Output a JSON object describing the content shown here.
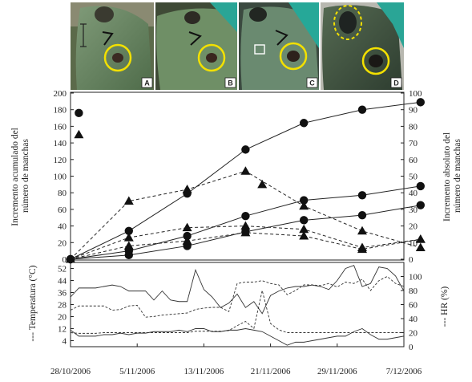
{
  "photo_panels": [
    {
      "label": "A"
    },
    {
      "label": "B"
    },
    {
      "label": "C"
    },
    {
      "label": "D"
    }
  ],
  "chart_data": [
    {
      "type": "line",
      "xlabel": "",
      "ylabel": "Incremento acumulado del número de manchas",
      "y2label": "Incremento absoluto del número de manchas",
      "ylim": [
        0,
        200
      ],
      "y2lim": [
        0,
        100
      ],
      "yticks": [
        0,
        20,
        40,
        60,
        80,
        100,
        120,
        140,
        160,
        180,
        200
      ],
      "y2ticks": [
        0,
        10,
        20,
        30,
        40,
        50,
        60,
        70,
        80,
        90,
        100
      ],
      "grid": false,
      "series": [
        {
          "style": "solid",
          "marker": "circle",
          "axis": "left",
          "points": [
            [
              "2006-10-28",
              0
            ],
            [
              "2006-11-04",
              34
            ],
            [
              "2006-11-11",
              79
            ],
            [
              "2006-11-18",
              132
            ],
            [
              "2006-11-25",
              164
            ],
            [
              "2006-12-02",
              180
            ],
            [
              "2006-12-09",
              189
            ]
          ]
        },
        {
          "style": "solid",
          "marker": "circle",
          "axis": "left",
          "points": [
            [
              "2006-10-28",
              0
            ],
            [
              "2006-11-04",
              10
            ],
            [
              "2006-11-11",
              28
            ],
            [
              "2006-11-18",
              52
            ],
            [
              "2006-11-25",
              71
            ],
            [
              "2006-12-02",
              77
            ],
            [
              "2006-12-09",
              88
            ]
          ]
        },
        {
          "style": "solid",
          "marker": "circle",
          "axis": "left",
          "points": [
            [
              "2006-10-28",
              0
            ],
            [
              "2006-11-04",
              5
            ],
            [
              "2006-11-11",
              16
            ],
            [
              "2006-11-18",
              33
            ],
            [
              "2006-11-25",
              47
            ],
            [
              "2006-12-02",
              53
            ],
            [
              "2006-12-09",
              65
            ]
          ]
        },
        {
          "style": "none",
          "marker": "circle",
          "axis": "left",
          "points": [
            [
              "2006-10-29",
              176
            ]
          ]
        },
        {
          "style": "dashed",
          "marker": "triangle",
          "axis": "right",
          "points": [
            [
              "2006-10-28",
              0
            ],
            [
              "2006-11-04",
              35
            ],
            [
              "2006-11-11",
              42
            ],
            [
              "2006-11-18",
              53
            ],
            [
              "2006-11-25",
              32
            ],
            [
              "2006-12-02",
              17
            ],
            [
              "2006-12-09",
              7
            ]
          ]
        },
        {
          "style": "dashed",
          "marker": "triangle",
          "axis": "right",
          "points": [
            [
              "2006-10-28",
              0
            ],
            [
              "2006-11-04",
              13
            ],
            [
              "2006-11-11",
              19
            ],
            [
              "2006-11-18",
              20
            ],
            [
              "2006-11-25",
              18
            ],
            [
              "2006-12-02",
              7
            ],
            [
              "2006-12-09",
              12
            ]
          ]
        },
        {
          "style": "dashed",
          "marker": "triangle",
          "axis": "right",
          "points": [
            [
              "2006-10-28",
              0
            ],
            [
              "2006-11-04",
              8
            ],
            [
              "2006-11-11",
              11
            ],
            [
              "2006-11-18",
              16
            ],
            [
              "2006-11-25",
              14
            ],
            [
              "2006-12-02",
              6
            ],
            [
              "2006-12-09",
              12
            ]
          ]
        },
        {
          "style": "none",
          "marker": "triangle",
          "axis": "right",
          "points": [
            [
              "2006-10-29",
              75
            ],
            [
              "2006-11-20",
              45
            ]
          ]
        }
      ]
    },
    {
      "type": "line",
      "xlabel": "",
      "ylabel": "--- Temperatura (°C)",
      "y2label": "--- HR (%)",
      "ylim": [
        0,
        56
      ],
      "y2lim": [
        0,
        120
      ],
      "yticks": [
        4,
        12,
        20,
        28,
        36,
        44,
        52
      ],
      "y2ticks": [
        0,
        20,
        40,
        60,
        80,
        100
      ],
      "x_ticks": [
        "28/10/2006",
        "5/11/2006",
        "13/11/2006",
        "21/11/2006",
        "29/11/2006",
        "7/12/2006"
      ],
      "grid": false,
      "series": [
        {
          "style": "solid",
          "axis": "left",
          "points": [
            [
              "2006-10-28",
              33
            ],
            [
              "2006-10-29",
              39
            ],
            [
              "2006-10-30",
              39
            ],
            [
              "2006-10-31",
              39
            ],
            [
              "2006-11-01",
              40
            ],
            [
              "2006-11-02",
              41
            ],
            [
              "2006-11-03",
              40
            ],
            [
              "2006-11-04",
              37
            ],
            [
              "2006-11-05",
              37
            ],
            [
              "2006-11-06",
              37
            ],
            [
              "2006-11-07",
              31
            ],
            [
              "2006-11-08",
              37
            ],
            [
              "2006-11-09",
              31
            ],
            [
              "2006-11-10",
              30
            ],
            [
              "2006-11-11",
              30
            ],
            [
              "2006-11-12",
              51
            ],
            [
              "2006-11-13",
              38
            ],
            [
              "2006-11-14",
              33
            ],
            [
              "2006-11-15",
              26
            ],
            [
              "2006-11-16",
              29
            ],
            [
              "2006-11-17",
              35
            ],
            [
              "2006-11-18",
              26
            ],
            [
              "2006-11-19",
              30
            ],
            [
              "2006-11-20",
              22
            ],
            [
              "2006-11-21",
              34
            ],
            [
              "2006-11-22",
              37
            ],
            [
              "2006-11-23",
              39
            ],
            [
              "2006-11-24",
              40
            ],
            [
              "2006-11-25",
              40
            ],
            [
              "2006-11-26",
              41
            ],
            [
              "2006-11-27",
              40
            ],
            [
              "2006-11-28",
              38
            ],
            [
              "2006-11-29",
              44
            ],
            [
              "2006-11-30",
              52
            ],
            [
              "2006-12-01",
              54
            ],
            [
              "2006-12-02",
              40
            ],
            [
              "2006-12-03",
              42
            ],
            [
              "2006-12-04",
              53
            ],
            [
              "2006-12-05",
              52
            ],
            [
              "2006-12-06",
              47
            ],
            [
              "2006-12-07",
              37
            ]
          ]
        },
        {
          "style": "solid",
          "axis": "left",
          "points": [
            [
              "2006-10-28",
              11
            ],
            [
              "2006-10-29",
              7
            ],
            [
              "2006-10-30",
              7
            ],
            [
              "2006-10-31",
              7
            ],
            [
              "2006-11-01",
              8
            ],
            [
              "2006-11-02",
              8
            ],
            [
              "2006-11-03",
              9
            ],
            [
              "2006-11-04",
              8
            ],
            [
              "2006-11-05",
              9
            ],
            [
              "2006-11-06",
              9
            ],
            [
              "2006-11-07",
              10
            ],
            [
              "2006-11-08",
              10
            ],
            [
              "2006-11-09",
              10
            ],
            [
              "2006-11-10",
              11
            ],
            [
              "2006-11-11",
              10
            ],
            [
              "2006-11-12",
              12
            ],
            [
              "2006-11-13",
              12
            ],
            [
              "2006-11-14",
              10
            ],
            [
              "2006-11-15",
              10
            ],
            [
              "2006-11-16",
              11
            ],
            [
              "2006-11-17",
              11
            ],
            [
              "2006-11-18",
              12
            ],
            [
              "2006-11-19",
              11
            ],
            [
              "2006-11-20",
              10
            ],
            [
              "2006-11-21",
              7
            ],
            [
              "2006-11-22",
              4
            ],
            [
              "2006-11-23",
              1
            ],
            [
              "2006-11-24",
              3
            ],
            [
              "2006-11-25",
              3
            ],
            [
              "2006-11-26",
              4
            ],
            [
              "2006-11-27",
              5
            ],
            [
              "2006-11-28",
              6
            ],
            [
              "2006-11-29",
              7
            ],
            [
              "2006-11-30",
              7
            ],
            [
              "2006-12-01",
              10
            ],
            [
              "2006-12-02",
              12
            ],
            [
              "2006-12-03",
              8
            ],
            [
              "2006-12-04",
              5
            ],
            [
              "2006-12-05",
              5
            ],
            [
              "2006-12-06",
              6
            ],
            [
              "2006-12-07",
              7
            ]
          ]
        },
        {
          "style": "dashed",
          "axis": "right",
          "points": [
            [
              "2006-10-28",
              52
            ],
            [
              "2006-10-29",
              58
            ],
            [
              "2006-10-30",
              58
            ],
            [
              "2006-10-31",
              58
            ],
            [
              "2006-11-01",
              58
            ],
            [
              "2006-11-02",
              52
            ],
            [
              "2006-11-03",
              53
            ],
            [
              "2006-11-04",
              58
            ],
            [
              "2006-11-05",
              59
            ],
            [
              "2006-11-06",
              42
            ],
            [
              "2006-11-07",
              43
            ],
            [
              "2006-11-08",
              45
            ],
            [
              "2006-11-09",
              46
            ],
            [
              "2006-11-10",
              47
            ],
            [
              "2006-11-11",
              48
            ],
            [
              "2006-11-12",
              53
            ],
            [
              "2006-11-13",
              55
            ],
            [
              "2006-11-14",
              56
            ],
            [
              "2006-11-15",
              56
            ],
            [
              "2006-11-16",
              50
            ],
            [
              "2006-11-17",
              90
            ],
            [
              "2006-11-18",
              92
            ],
            [
              "2006-11-19",
              92
            ],
            [
              "2006-11-20",
              94
            ],
            [
              "2006-11-21",
              90
            ],
            [
              "2006-11-22",
              88
            ],
            [
              "2006-11-23",
              74
            ],
            [
              "2006-11-24",
              80
            ],
            [
              "2006-11-25",
              88
            ],
            [
              "2006-11-26",
              88
            ],
            [
              "2006-11-27",
              87
            ],
            [
              "2006-11-28",
              90
            ],
            [
              "2006-11-29",
              85
            ],
            [
              "2006-11-30",
              92
            ],
            [
              "2006-12-01",
              90
            ],
            [
              "2006-12-02",
              96
            ],
            [
              "2006-12-03",
              80
            ],
            [
              "2006-12-04",
              94
            ],
            [
              "2006-12-05",
              100
            ],
            [
              "2006-12-06",
              90
            ],
            [
              "2006-12-07",
              86
            ]
          ]
        },
        {
          "style": "dashed",
          "axis": "right",
          "points": [
            [
              "2006-10-28",
              20
            ],
            [
              "2006-10-29",
              19
            ],
            [
              "2006-10-30",
              19
            ],
            [
              "2006-10-31",
              19
            ],
            [
              "2006-11-01",
              20
            ],
            [
              "2006-11-02",
              20
            ],
            [
              "2006-11-03",
              20
            ],
            [
              "2006-11-04",
              20
            ],
            [
              "2006-11-05",
              20
            ],
            [
              "2006-11-06",
              20
            ],
            [
              "2006-11-07",
              20
            ],
            [
              "2006-11-08",
              20
            ],
            [
              "2006-11-09",
              20
            ],
            [
              "2006-11-10",
              20
            ],
            [
              "2006-11-11",
              20
            ],
            [
              "2006-11-12",
              22
            ],
            [
              "2006-11-13",
              22
            ],
            [
              "2006-11-14",
              22
            ],
            [
              "2006-11-15",
              22
            ],
            [
              "2006-11-16",
              23
            ],
            [
              "2006-11-17",
              30
            ],
            [
              "2006-11-18",
              36
            ],
            [
              "2006-11-19",
              26
            ],
            [
              "2006-11-20",
              80
            ],
            [
              "2006-11-21",
              33
            ],
            [
              "2006-11-22",
              24
            ],
            [
              "2006-11-23",
              20
            ],
            [
              "2006-11-24",
              20
            ],
            [
              "2006-11-25",
              20
            ],
            [
              "2006-11-26",
              20
            ],
            [
              "2006-11-27",
              20
            ],
            [
              "2006-11-28",
              20
            ],
            [
              "2006-11-29",
              20
            ],
            [
              "2006-11-30",
              20
            ],
            [
              "2006-12-01",
              20
            ],
            [
              "2006-12-02",
              20
            ],
            [
              "2006-12-03",
              20
            ],
            [
              "2006-12-04",
              20
            ],
            [
              "2006-12-05",
              20
            ],
            [
              "2006-12-06",
              20
            ],
            [
              "2006-12-07",
              20
            ]
          ]
        }
      ]
    }
  ]
}
